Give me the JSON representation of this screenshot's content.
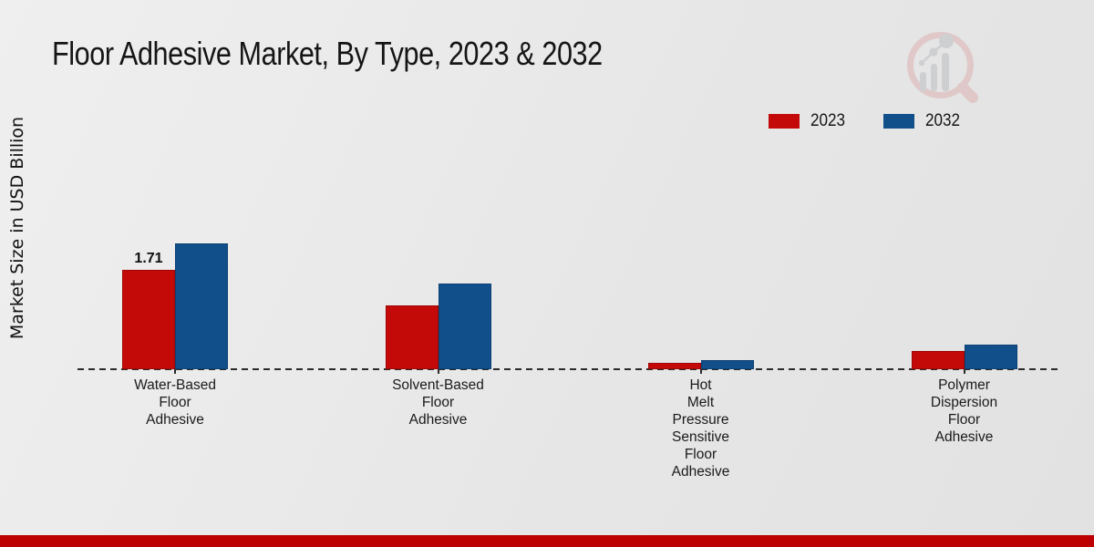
{
  "title": "Floor Adhesive Market, By Type, 2023 & 2032",
  "y_axis": {
    "label": "Market Size in USD Billion"
  },
  "legend": {
    "items": [
      {
        "label": "2023",
        "color": "#c40909"
      },
      {
        "label": "2032",
        "color": "#114f8b"
      }
    ]
  },
  "chart_data": {
    "type": "bar",
    "title": "Floor Adhesive Market, By Type, 2023 & 2032",
    "ylabel": "Market Size in USD Billion",
    "unit": "USD Billion",
    "categories": [
      "Water-Based\nFloor\nAdhesive",
      "Solvent-Based\nFloor\nAdhesive",
      "Hot\nMelt\nPressure\nSensitive\nFloor\nAdhesive",
      "Polymer\nDispersion\nFloor\nAdhesive"
    ],
    "series": [
      {
        "name": "2023",
        "color": "#c40909",
        "values": [
          1.71,
          1.1,
          0.11,
          0.31
        ]
      },
      {
        "name": "2032",
        "color": "#114f8b",
        "values": [
          2.17,
          1.47,
          0.16,
          0.42
        ]
      }
    ],
    "bar_labels": [
      {
        "category_index": 0,
        "series_index": 0,
        "text": "1.71"
      }
    ],
    "baseline": {
      "value": 0,
      "style": "dashed"
    },
    "legend_position": "top-right",
    "grid": false
  },
  "watermark": {
    "name": "market-research-future-logo"
  },
  "footer": {
    "stripe_color": "#bd0101"
  }
}
